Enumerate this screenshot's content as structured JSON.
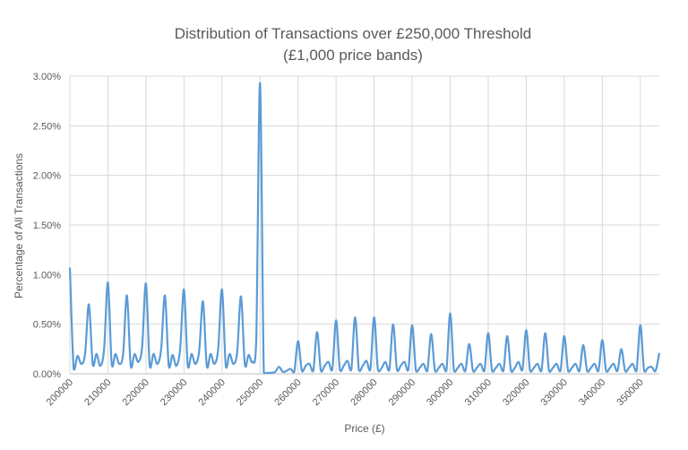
{
  "chart_data": {
    "type": "line",
    "title": "Distribution of Transactions over £250,000 Threshold",
    "subtitle": "(£1,000 price bands)",
    "xlabel": "Price (£)",
    "ylabel": "Percentage  of All Transactions",
    "x_start": 200000,
    "x_step": 1000,
    "xlim": [
      200000,
      355000
    ],
    "ylim": [
      0,
      3.0
    ],
    "grid": true,
    "legend": "none",
    "line_color": "#5B9BD5",
    "x_tick_labels": [
      "200000",
      "210000",
      "220000",
      "230000",
      "240000",
      "250000",
      "260000",
      "270000",
      "280000",
      "290000",
      "300000",
      "310000",
      "320000",
      "330000",
      "340000",
      "350000"
    ],
    "x_tick_values": [
      200000,
      210000,
      220000,
      230000,
      240000,
      250000,
      260000,
      270000,
      280000,
      290000,
      300000,
      310000,
      320000,
      330000,
      340000,
      350000
    ],
    "y_tick_labels": [
      "0.00%",
      "0.50%",
      "1.00%",
      "1.50%",
      "2.00%",
      "2.50%",
      "3.00%"
    ],
    "y_tick_values": [
      0,
      0.5,
      1.0,
      1.5,
      2.0,
      2.5,
      3.0
    ],
    "series": [
      {
        "name": "Percentage of All Transactions",
        "values": [
          1.07,
          0.05,
          0.18,
          0.1,
          0.2,
          0.7,
          0.1,
          0.2,
          0.08,
          0.25,
          0.92,
          0.1,
          0.2,
          0.1,
          0.2,
          0.79,
          0.08,
          0.2,
          0.12,
          0.27,
          0.91,
          0.08,
          0.2,
          0.1,
          0.25,
          0.79,
          0.08,
          0.19,
          0.08,
          0.25,
          0.85,
          0.08,
          0.2,
          0.1,
          0.23,
          0.73,
          0.08,
          0.2,
          0.1,
          0.25,
          0.85,
          0.08,
          0.2,
          0.1,
          0.22,
          0.78,
          0.1,
          0.19,
          0.12,
          0.33,
          2.93,
          0.01,
          0.01,
          0.01,
          0.02,
          0.07,
          0.02,
          0.03,
          0.05,
          0.02,
          0.33,
          0.03,
          0.08,
          0.1,
          0.03,
          0.42,
          0.03,
          0.08,
          0.12,
          0.04,
          0.54,
          0.04,
          0.08,
          0.13,
          0.04,
          0.57,
          0.04,
          0.08,
          0.13,
          0.04,
          0.57,
          0.04,
          0.06,
          0.12,
          0.04,
          0.5,
          0.04,
          0.08,
          0.12,
          0.04,
          0.49,
          0.03,
          0.06,
          0.1,
          0.03,
          0.4,
          0.03,
          0.06,
          0.1,
          0.03,
          0.61,
          0.03,
          0.06,
          0.1,
          0.03,
          0.3,
          0.03,
          0.06,
          0.1,
          0.03,
          0.41,
          0.03,
          0.06,
          0.1,
          0.03,
          0.38,
          0.03,
          0.06,
          0.12,
          0.04,
          0.44,
          0.03,
          0.06,
          0.1,
          0.03,
          0.41,
          0.03,
          0.06,
          0.1,
          0.03,
          0.38,
          0.03,
          0.06,
          0.1,
          0.03,
          0.29,
          0.03,
          0.06,
          0.1,
          0.03,
          0.34,
          0.03,
          0.06,
          0.1,
          0.03,
          0.25,
          0.03,
          0.06,
          0.1,
          0.03,
          0.49,
          0.03,
          0.06,
          0.07,
          0.03,
          0.21
        ]
      }
    ]
  }
}
